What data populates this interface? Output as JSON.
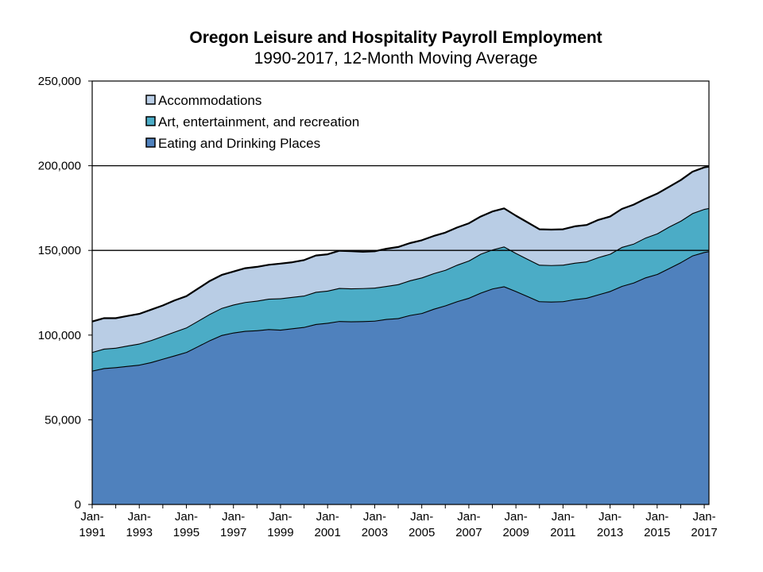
{
  "chart_data": {
    "type": "area",
    "stacked": true,
    "title": "Oregon Leisure and Hospitality Payroll Employment",
    "subtitle": "1990-2017, 12-Month Moving Average",
    "xlabel": "",
    "ylabel": "",
    "ylim": [
      0,
      250000
    ],
    "xlim": [
      "Jan-1991",
      "Mar-2017"
    ],
    "y_ticks": [
      "0",
      "50,000",
      "100,000",
      "150,000",
      "200,000",
      "250,000"
    ],
    "y_tick_values": [
      0,
      50000,
      100000,
      150000,
      200000,
      250000
    ],
    "x_ticks": [
      {
        "line1": "Jan-",
        "line2": "1991",
        "year": 1991
      },
      {
        "line1": "Jan-",
        "line2": "1993",
        "year": 1993
      },
      {
        "line1": "Jan-",
        "line2": "1995",
        "year": 1995
      },
      {
        "line1": "Jan-",
        "line2": "1997",
        "year": 1997
      },
      {
        "line1": "Jan-",
        "line2": "1999",
        "year": 1999
      },
      {
        "line1": "Jan-",
        "line2": "2001",
        "year": 2001
      },
      {
        "line1": "Jan-",
        "line2": "2003",
        "year": 2003
      },
      {
        "line1": "Jan-",
        "line2": "2005",
        "year": 2005
      },
      {
        "line1": "Jan-",
        "line2": "2007",
        "year": 2007
      },
      {
        "line1": "Jan-",
        "line2": "2009",
        "year": 2009
      },
      {
        "line1": "Jan-",
        "line2": "2011",
        "year": 2011
      },
      {
        "line1": "Jan-",
        "line2": "2013",
        "year": 2013
      },
      {
        "line1": "Jan-",
        "line2": "2015",
        "year": 2015
      },
      {
        "line1": "Jan-",
        "line2": "2017",
        "year": 2017
      }
    ],
    "gridlines_y": [
      150000,
      200000
    ],
    "legend_position": "top-left",
    "x": [
      1991.0,
      1991.5,
      1992.0,
      1992.5,
      1993.0,
      1993.5,
      1994.0,
      1994.5,
      1995.0,
      1995.5,
      1996.0,
      1996.5,
      1997.0,
      1997.5,
      1998.0,
      1998.5,
      1999.0,
      1999.5,
      2000.0,
      2000.5,
      2001.0,
      2001.5,
      2002.0,
      2002.5,
      2003.0,
      2003.5,
      2004.0,
      2004.5,
      2005.0,
      2005.5,
      2006.0,
      2006.5,
      2007.0,
      2007.5,
      2008.0,
      2008.5,
      2009.0,
      2009.5,
      2010.0,
      2010.5,
      2011.0,
      2011.5,
      2012.0,
      2012.5,
      2013.0,
      2013.5,
      2014.0,
      2014.5,
      2015.0,
      2015.5,
      2016.0,
      2016.5,
      2017.0,
      2017.2
    ],
    "series": [
      {
        "name": "Eating and Drinking Places",
        "color": "#4f81bd",
        "values": [
          79000,
          80500,
          81000,
          81800,
          82500,
          84000,
          86000,
          88000,
          90000,
          93500,
          97000,
          100000,
          101500,
          102500,
          102800,
          103500,
          103200,
          104000,
          104800,
          106500,
          107200,
          108300,
          108100,
          108200,
          108500,
          109500,
          110000,
          111800,
          113000,
          115500,
          117500,
          120000,
          122000,
          125000,
          127500,
          128800,
          126000,
          123000,
          120000,
          119800,
          120000,
          121200,
          122000,
          124000,
          126000,
          129000,
          131000,
          134000,
          136000,
          139500,
          143000,
          147000,
          149000,
          149500
        ]
      },
      {
        "name": "Art, entertainment, and recreation",
        "color": "#4bacc6",
        "values": [
          11000,
          11500,
          11500,
          12000,
          12500,
          13000,
          13500,
          14000,
          14500,
          15000,
          15500,
          16000,
          16500,
          17000,
          17500,
          18000,
          18500,
          18500,
          18500,
          19000,
          19000,
          19500,
          19500,
          19500,
          19500,
          19500,
          20000,
          20500,
          21000,
          21000,
          21000,
          21500,
          22000,
          23000,
          23000,
          23500,
          22500,
          22000,
          21500,
          21500,
          21500,
          21500,
          21500,
          22000,
          22000,
          23000,
          23000,
          23500,
          24000,
          24500,
          24500,
          25000,
          25500,
          25500
        ]
      },
      {
        "name": "Accommodations",
        "color": "#b9cde5",
        "values": [
          18000,
          18000,
          17500,
          17500,
          17500,
          18000,
          18000,
          18500,
          18500,
          19000,
          19500,
          19500,
          19500,
          20000,
          20000,
          20000,
          20500,
          20500,
          21000,
          21500,
          21500,
          22000,
          22000,
          21500,
          21500,
          22000,
          22000,
          22000,
          22000,
          22000,
          22000,
          22000,
          22000,
          22000,
          22500,
          22500,
          22000,
          21500,
          21000,
          21000,
          21000,
          21500,
          21500,
          22000,
          22000,
          22500,
          23000,
          23000,
          23500,
          23500,
          24000,
          24500,
          24500,
          24500
        ]
      }
    ]
  }
}
